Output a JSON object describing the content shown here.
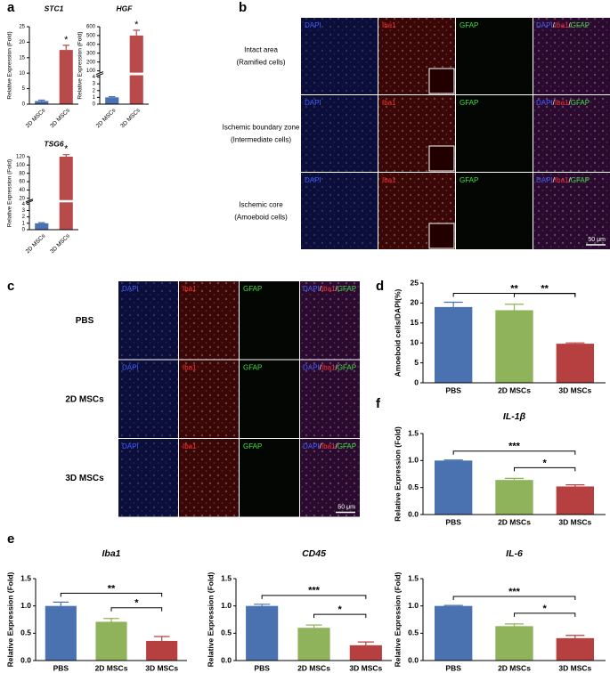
{
  "panel_labels": [
    "a",
    "b",
    "c",
    "d",
    "e",
    "f"
  ],
  "panel_b": {
    "channels": [
      "DAPI",
      "Iba1",
      "GFAP"
    ],
    "merge": [
      "DAPI",
      "/",
      "Iba1",
      "/",
      "GFAP"
    ],
    "rows": [
      [
        "Intact area",
        "(Ramified cells)"
      ],
      [
        "Ischemic boundary zone",
        "(Intermediate cells)"
      ],
      [
        "Ischemic core",
        "(Amoeboid cells)"
      ]
    ],
    "scale_bar": "50 μm"
  },
  "panel_c": {
    "channels": [
      "DAPI",
      "Iba1",
      "GFAP"
    ],
    "merge": [
      "DAPI",
      "/",
      "Iba1",
      "/",
      "GFAP"
    ],
    "rows": [
      "PBS",
      "2D MSCs",
      "3D MSCs"
    ],
    "scale_bar": "50 μm"
  },
  "chart_data": [
    {
      "type": "bar",
      "title": "STC1",
      "ylabel": "Relative Expression (Fold)",
      "categories": [
        "2D MSCs",
        "3D MSCs"
      ],
      "values": [
        1,
        17.5
      ],
      "errors": [
        0.3,
        1.5
      ],
      "colors": [
        "#4a72b0",
        "#b84a4a"
      ],
      "value_annotations": [
        null,
        "*"
      ],
      "ylim": [
        0,
        25
      ],
      "yticks": [
        0,
        5,
        10,
        15,
        20,
        25
      ]
    },
    {
      "type": "bar",
      "title": "HGF",
      "ylabel": "Relative Expression (Fold)",
      "categories": [
        "2D MSCs",
        "3D MSCs"
      ],
      "values": [
        1,
        500
      ],
      "errors": [
        0.1,
        60
      ],
      "colors": [
        "#4a72b0",
        "#b84a4a"
      ],
      "value_annotations": [
        null,
        "*"
      ],
      "ylim": [
        0,
        600
      ],
      "ybreak": [
        4,
        100
      ],
      "yticks": [
        0,
        1,
        2,
        3,
        4,
        100,
        200,
        300,
        400,
        500,
        600
      ]
    },
    {
      "type": "bar",
      "title": "TSG6",
      "ylabel": "Relative Expression (Fold)",
      "categories": [
        "2D MSCs",
        "3D MSCs"
      ],
      "values": [
        1,
        120
      ],
      "errors": [
        0.1,
        5
      ],
      "colors": [
        "#4a72b0",
        "#b84a4a"
      ],
      "value_annotations": [
        null,
        "*"
      ],
      "ylim": [
        0,
        120
      ],
      "ybreak": [
        4,
        20
      ],
      "yticks": [
        0,
        1,
        2,
        3,
        4,
        20,
        40,
        60,
        80,
        100,
        120
      ]
    },
    {
      "type": "bar",
      "ylabel": "Amoeboid cells/DAPI(%)",
      "categories": [
        "PBS",
        "2D MSCs",
        "3D MSCs"
      ],
      "values": [
        19,
        18.2,
        9.8
      ],
      "errors": [
        1.2,
        1.5,
        0.2
      ],
      "colors": [
        "#4a72b0",
        "#8fb35a",
        "#b5403f"
      ],
      "significance": [
        {
          "pair": [
            "PBS",
            "3D MSCs"
          ],
          "label": "**"
        },
        {
          "pair": [
            "2D MSCs",
            "3D MSCs"
          ],
          "label": "**"
        }
      ],
      "ylim": [
        0,
        25
      ],
      "yticks": [
        0,
        5,
        10,
        15,
        20,
        25
      ]
    },
    {
      "type": "bar",
      "title": "IL-1β",
      "ylabel": "Relative Expression (Fold)",
      "categories": [
        "PBS",
        "2D MSCs",
        "3D MSCs"
      ],
      "values": [
        1,
        0.64,
        0.52
      ],
      "errors": [
        0.01,
        0.03,
        0.03
      ],
      "colors": [
        "#4a72b0",
        "#8fb35a",
        "#b5403f"
      ],
      "significance": [
        {
          "pair": [
            "PBS",
            "3D MSCs"
          ],
          "label": "***"
        },
        {
          "pair": [
            "2D MSCs",
            "3D MSCs"
          ],
          "label": "*"
        }
      ],
      "ylim": [
        0,
        1.5
      ],
      "yticks": [
        {
          "value": 0,
          "label": "0.0"
        },
        {
          "value": 0.5,
          "label": "0.5"
        },
        {
          "value": 1,
          "label": "1.0"
        },
        {
          "value": 1.5,
          "label": "1.5"
        }
      ]
    },
    {
      "type": "bar",
      "title": "Iba1",
      "ylabel": "Relative Expression (Fold)",
      "categories": [
        "PBS",
        "2D MSCs",
        "3D MSCs"
      ],
      "values": [
        1,
        0.71,
        0.36
      ],
      "errors": [
        0.07,
        0.06,
        0.08
      ],
      "colors": [
        "#4a72b0",
        "#8fb35a",
        "#b5403f"
      ],
      "significance": [
        {
          "pair": [
            "PBS",
            "3D MSCs"
          ],
          "label": "**"
        },
        {
          "pair": [
            "2D MSCs",
            "3D MSCs"
          ],
          "label": "*"
        }
      ],
      "ylim": [
        0,
        1.5
      ],
      "yticks": [
        {
          "value": 0,
          "label": "0.0"
        },
        {
          "value": 0.5,
          "label": "0.5"
        },
        {
          "value": 1,
          "label": "1.0"
        },
        {
          "value": 1.5,
          "label": "1.5"
        }
      ]
    },
    {
      "type": "bar",
      "title": "CD45",
      "ylabel": "Relative Expression (Fold)",
      "categories": [
        "PBS",
        "2D MSCs",
        "3D MSCs"
      ],
      "values": [
        1,
        0.6,
        0.28
      ],
      "errors": [
        0.03,
        0.05,
        0.06
      ],
      "colors": [
        "#4a72b0",
        "#8fb35a",
        "#b5403f"
      ],
      "significance": [
        {
          "pair": [
            "PBS",
            "3D MSCs"
          ],
          "label": "***"
        },
        {
          "pair": [
            "2D MSCs",
            "3D MSCs"
          ],
          "label": "*"
        }
      ],
      "ylim": [
        0,
        1.5
      ],
      "yticks": [
        {
          "value": 0,
          "label": "0.0"
        },
        {
          "value": 0.5,
          "label": "0.5"
        },
        {
          "value": 1,
          "label": "1.0"
        },
        {
          "value": 1.5,
          "label": "1.5"
        }
      ]
    },
    {
      "type": "bar",
      "title": "IL-6",
      "ylabel": "Relative Expression (Fold)",
      "categories": [
        "PBS",
        "2D MSCs",
        "3D MSCs"
      ],
      "values": [
        1,
        0.63,
        0.41
      ],
      "errors": [
        0.01,
        0.04,
        0.05
      ],
      "colors": [
        "#4a72b0",
        "#8fb35a",
        "#b5403f"
      ],
      "significance": [
        {
          "pair": [
            "PBS",
            "3D MSCs"
          ],
          "label": "***"
        },
        {
          "pair": [
            "2D MSCs",
            "3D MSCs"
          ],
          "label": "*"
        }
      ],
      "ylim": [
        0,
        1.5
      ],
      "yticks": [
        {
          "value": 0,
          "label": "0.0"
        },
        {
          "value": 0.5,
          "label": "0.5"
        },
        {
          "value": 1,
          "label": "1.0"
        },
        {
          "value": 1.5,
          "label": "1.5"
        }
      ]
    }
  ]
}
